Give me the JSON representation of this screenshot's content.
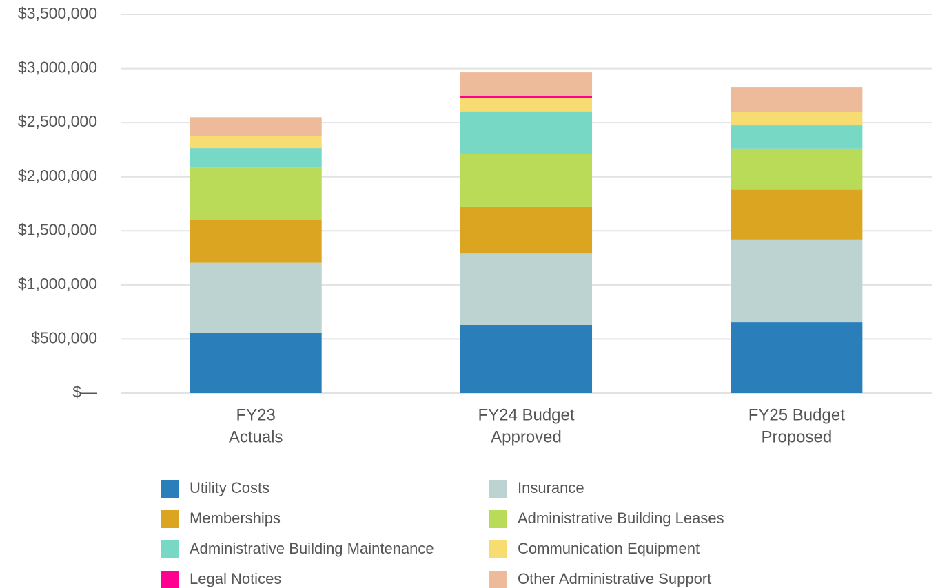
{
  "chart_data": {
    "type": "stacked_bar",
    "categories": [
      [
        "FY23",
        "Actuals"
      ],
      [
        "FY24 Budget",
        "Approved"
      ],
      [
        "FY25 Budget",
        "Proposed"
      ]
    ],
    "series": [
      {
        "name": "Utility Costs",
        "color": "#2a7fba",
        "values": [
          555000,
          630000,
          655000
        ]
      },
      {
        "name": "Insurance",
        "color": "#bdd3d1",
        "values": [
          650000,
          660000,
          765000
        ]
      },
      {
        "name": "Memberships",
        "color": "#dba522",
        "values": [
          395000,
          435000,
          460000
        ]
      },
      {
        "name": "Administrative Building Leases",
        "color": "#badb57",
        "values": [
          485000,
          485000,
          380000
        ]
      },
      {
        "name": "Administrative Building Maintenance",
        "color": "#77d9c5",
        "values": [
          180000,
          395000,
          215000
        ]
      },
      {
        "name": "Communication Equipment",
        "color": "#f7dc72",
        "values": [
          115000,
          125000,
          125000
        ]
      },
      {
        "name": "Legal Notices",
        "color": "#ff0090",
        "values": [
          0,
          15000,
          0
        ]
      },
      {
        "name": "Other Administrative Support",
        "color": "#edbb9a",
        "values": [
          170000,
          220000,
          225000
        ]
      }
    ],
    "ylim": [
      0,
      3500000
    ],
    "yticks": [
      {
        "value": 0,
        "label": "$—"
      },
      {
        "value": 500000,
        "label": "$500,000"
      },
      {
        "value": 1000000,
        "label": "$1,000,000"
      },
      {
        "value": 1500000,
        "label": "$1,500,000"
      },
      {
        "value": 2000000,
        "label": "$2,000,000"
      },
      {
        "value": 2500000,
        "label": "$2,500,000"
      },
      {
        "value": 3000000,
        "label": "$3,000,000"
      },
      {
        "value": 3500000,
        "label": "$3,500,000"
      }
    ],
    "grid": true,
    "legend": "bottom"
  }
}
